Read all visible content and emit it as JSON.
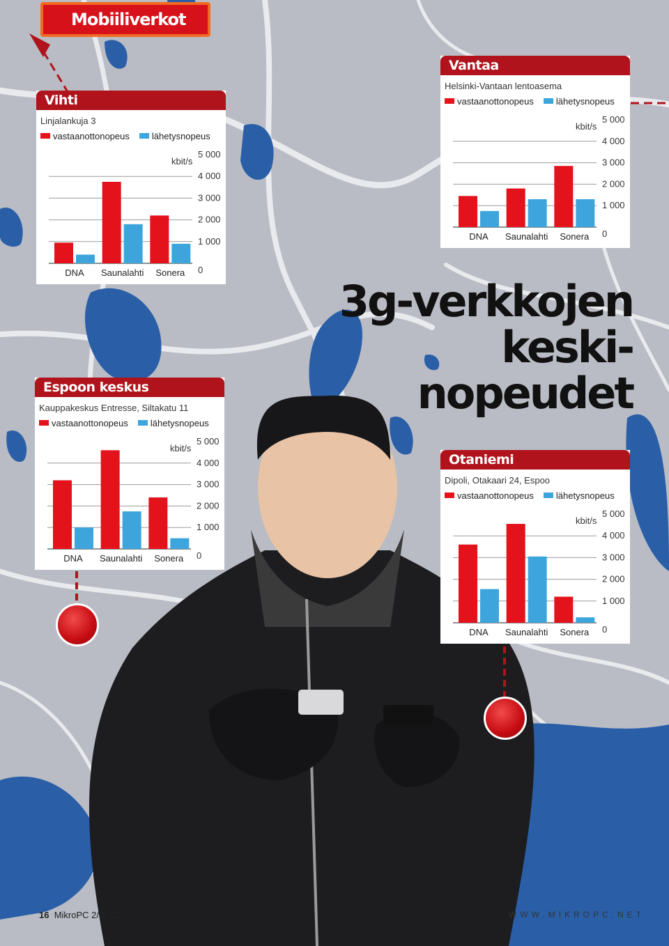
{
  "page": {
    "section_tag": "Mobiiliverkot",
    "headline_lines": [
      "3g-verkkojen",
      "keski-",
      "nopeudet"
    ],
    "footer_page": "16",
    "footer_mag": "MikroPC 2/2012",
    "footer_url": "WWW.MIKROPC.NET"
  },
  "colors": {
    "download": "#e3121b",
    "upload": "#3ea5dc",
    "panel_header": "#b0131b",
    "map_water": "#2a5fa8",
    "map_land": "#b9bcc4"
  },
  "legend": {
    "download": "vastaanottonopeus",
    "upload": "lähetysnopeus",
    "unit": "kbit/s"
  },
  "chart_data": [
    {
      "type": "bar",
      "title": "Vihti",
      "subtitle": "Linjalankuja 3",
      "categories": [
        "DNA",
        "Saunalahti",
        "Sonera"
      ],
      "series": [
        {
          "name": "vastaanottonopeus",
          "values": [
            950,
            3750,
            2200
          ]
        },
        {
          "name": "lähetysnopeus",
          "values": [
            400,
            1800,
            900
          ]
        }
      ],
      "ylabel": "kbit/s",
      "yticks": [
        "0",
        "1 000",
        "2 000",
        "3 000",
        "4 000",
        "5 000"
      ],
      "ylim": [
        0,
        5000
      ]
    },
    {
      "type": "bar",
      "title": "Vantaa",
      "subtitle": "Helsinki-Vantaan lentoasema",
      "categories": [
        "DNA",
        "Saunalahti",
        "Sonera"
      ],
      "series": [
        {
          "name": "vastaanottonopeus",
          "values": [
            1450,
            1800,
            2850
          ]
        },
        {
          "name": "lähetysnopeus",
          "values": [
            750,
            1300,
            1300
          ]
        }
      ],
      "ylabel": "kbit/s",
      "yticks": [
        "0",
        "1 000",
        "2 000",
        "3 000",
        "4 000",
        "5 000"
      ],
      "ylim": [
        0,
        5000
      ]
    },
    {
      "type": "bar",
      "title": "Espoon keskus",
      "subtitle": "Kauppakeskus Entresse, Siltakatu 11",
      "categories": [
        "DNA",
        "Saunalahti",
        "Sonera"
      ],
      "series": [
        {
          "name": "vastaanottonopeus",
          "values": [
            3200,
            4600,
            2400
          ]
        },
        {
          "name": "lähetysnopeus",
          "values": [
            1000,
            1750,
            500
          ]
        }
      ],
      "ylabel": "kbit/s",
      "yticks": [
        "0",
        "1 000",
        "2 000",
        "3 000",
        "4 000",
        "5 000"
      ],
      "ylim": [
        0,
        5000
      ]
    },
    {
      "type": "bar",
      "title": "Otaniemi",
      "subtitle": "Dipoli, Otakaari 24, Espoo",
      "categories": [
        "DNA",
        "Saunalahti",
        "Sonera"
      ],
      "series": [
        {
          "name": "vastaanottonopeus",
          "values": [
            3600,
            4550,
            1200
          ]
        },
        {
          "name": "lähetysnopeus",
          "values": [
            1550,
            3050,
            250
          ]
        }
      ],
      "ylabel": "kbit/s",
      "yticks": [
        "0",
        "1 000",
        "2 000",
        "3 000",
        "4 000",
        "5 000"
      ],
      "ylim": [
        0,
        5000
      ]
    }
  ]
}
